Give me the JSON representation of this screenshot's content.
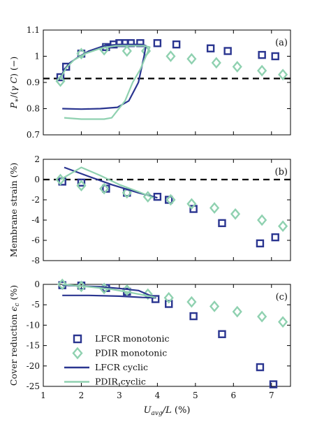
{
  "colors": {
    "lfcr": "#2a3590",
    "pdir": "#8fd1b0",
    "dashed": "#000000",
    "axis": "#000000"
  },
  "chart_data": [
    {
      "type": "scatter",
      "panel_label": "(a)",
      "ylabel": "P∗/(γ C) (−)",
      "xlim": [
        1,
        7.5
      ],
      "ylim": [
        0.7,
        1.1
      ],
      "yticks": [
        "0.7",
        "0.8",
        "0.9",
        "1",
        "1.1"
      ],
      "show_xticklabels": false,
      "reference_line": 0.915,
      "series": [
        {
          "name": "LFCR monotonic",
          "marker": "square",
          "color": "lfcr",
          "points": [
            [
              1.45,
              0.92
            ],
            [
              1.6,
              0.96
            ],
            [
              2.0,
              1.01
            ],
            [
              2.65,
              1.035
            ],
            [
              2.85,
              1.045
            ],
            [
              3.0,
              1.05
            ],
            [
              3.15,
              1.05
            ],
            [
              3.3,
              1.05
            ],
            [
              3.55,
              1.05
            ],
            [
              4.0,
              1.05
            ],
            [
              4.5,
              1.045
            ],
            [
              5.4,
              1.03
            ],
            [
              5.85,
              1.02
            ],
            [
              6.75,
              1.005
            ],
            [
              7.1,
              1.0
            ]
          ]
        },
        {
          "name": "PDIR monotonic",
          "marker": "diamond",
          "color": "pdir",
          "points": [
            [
              1.45,
              0.905
            ],
            [
              2.0,
              1.01
            ],
            [
              2.6,
              1.025
            ],
            [
              3.2,
              1.02
            ],
            [
              3.7,
              1.02
            ],
            [
              4.35,
              1.0
            ],
            [
              4.9,
              0.99
            ],
            [
              5.55,
              0.975
            ],
            [
              6.1,
              0.96
            ],
            [
              6.75,
              0.945
            ],
            [
              7.3,
              0.93
            ]
          ]
        },
        {
          "name": "LFCR cyclic",
          "line": true,
          "color": "lfcr",
          "points": [
            [
              1.45,
              0.915
            ],
            [
              1.55,
              0.95
            ],
            [
              1.7,
              0.975
            ],
            [
              1.9,
              0.995
            ],
            [
              2.2,
              1.02
            ],
            [
              2.6,
              1.04
            ],
            [
              3.0,
              1.045
            ],
            [
              3.3,
              1.045
            ],
            [
              3.6,
              1.045
            ],
            [
              3.7,
              1.04
            ],
            [
              3.65,
              1.0
            ],
            [
              3.5,
              0.9
            ],
            [
              3.25,
              0.83
            ],
            [
              2.95,
              0.805
            ],
            [
              2.5,
              0.8
            ],
            [
              2.0,
              0.798
            ],
            [
              1.5,
              0.8
            ]
          ]
        },
        {
          "name": "PDIR cyclic",
          "line": true,
          "color": "pdir",
          "points": [
            [
              1.45,
              0.915
            ],
            [
              1.6,
              0.955
            ],
            [
              1.8,
              0.985
            ],
            [
              2.1,
              1.01
            ],
            [
              2.5,
              1.03
            ],
            [
              2.9,
              1.04
            ],
            [
              3.3,
              1.04
            ],
            [
              3.65,
              1.04
            ],
            [
              3.8,
              1.035
            ],
            [
              3.55,
              0.95
            ],
            [
              3.35,
              0.9
            ],
            [
              3.15,
              0.83
            ],
            [
              2.8,
              0.765
            ],
            [
              2.6,
              0.76
            ],
            [
              2.0,
              0.76
            ],
            [
              1.55,
              0.765
            ]
          ]
        }
      ]
    },
    {
      "type": "scatter",
      "panel_label": "(b)",
      "ylabel": "Membrane strain (%)",
      "xlim": [
        1,
        7.5
      ],
      "ylim": [
        -8,
        2
      ],
      "yticks": [
        "-8",
        "-6",
        "-4",
        "-2",
        "0",
        "2"
      ],
      "show_xticklabels": false,
      "reference_line": 0,
      "series": [
        {
          "name": "LFCR monotonic",
          "marker": "square",
          "color": "lfcr",
          "points": [
            [
              1.5,
              -0.2
            ],
            [
              2.0,
              -0.3
            ],
            [
              2.65,
              -0.9
            ],
            [
              3.2,
              -1.3
            ],
            [
              4.0,
              -1.7
            ],
            [
              4.3,
              -2.0
            ],
            [
              4.95,
              -2.9
            ],
            [
              5.7,
              -4.3
            ],
            [
              6.7,
              -6.3
            ],
            [
              7.1,
              -5.7
            ]
          ]
        },
        {
          "name": "PDIR monotonic",
          "marker": "diamond",
          "color": "pdir",
          "points": [
            [
              1.45,
              0.0
            ],
            [
              2.0,
              -0.6
            ],
            [
              2.6,
              -0.9
            ],
            [
              3.2,
              -1.3
            ],
            [
              3.75,
              -1.7
            ],
            [
              4.35,
              -2.0
            ],
            [
              4.9,
              -2.4
            ],
            [
              5.5,
              -2.8
            ],
            [
              6.05,
              -3.4
            ],
            [
              6.75,
              -4.0
            ],
            [
              7.3,
              -4.6
            ]
          ]
        },
        {
          "name": "LFCR cyclic",
          "line": true,
          "color": "lfcr",
          "points": [
            [
              1.55,
              1.2
            ],
            [
              2.2,
              0.3
            ],
            [
              2.8,
              -0.5
            ],
            [
              3.5,
              -1.3
            ],
            [
              4.0,
              -1.8
            ]
          ]
        },
        {
          "name": "PDIR cyclic",
          "line": true,
          "color": "pdir",
          "points": [
            [
              1.45,
              0.0
            ],
            [
              2.0,
              1.2
            ],
            [
              2.5,
              0.4
            ],
            [
              3.0,
              -0.5
            ],
            [
              3.5,
              -1.2
            ],
            [
              3.9,
              -1.8
            ]
          ]
        }
      ]
    },
    {
      "type": "scatter",
      "panel_label": "(c)",
      "ylabel": "Cover reduction ϵc (%)",
      "xlabel": "Uavg/L (%)",
      "xlim": [
        1,
        7.5
      ],
      "ylim": [
        -25,
        0
      ],
      "xticks": [
        "1",
        "2",
        "3",
        "4",
        "5",
        "6",
        "7"
      ],
      "yticks": [
        "-25",
        "-20",
        "-15",
        "-10",
        "-5",
        "0"
      ],
      "show_xticklabels": true,
      "legend_position": "lower-left",
      "series": [
        {
          "name": "LFCR monotonic",
          "marker": "square",
          "color": "lfcr",
          "points": [
            [
              1.5,
              -0.2
            ],
            [
              2.0,
              -0.3
            ],
            [
              2.65,
              -0.9
            ],
            [
              3.2,
              -1.8
            ],
            [
              3.95,
              -3.6
            ],
            [
              4.3,
              -4.8
            ],
            [
              4.95,
              -7.8
            ],
            [
              5.7,
              -12.2
            ],
            [
              6.7,
              -20.3
            ],
            [
              7.05,
              -24.5
            ]
          ]
        },
        {
          "name": "PDIR monotonic",
          "marker": "diamond",
          "color": "pdir",
          "points": [
            [
              1.5,
              0.0
            ],
            [
              2.0,
              -0.5
            ],
            [
              2.6,
              -1.0
            ],
            [
              3.2,
              -1.4
            ],
            [
              3.75,
              -2.4
            ],
            [
              4.3,
              -3.3
            ],
            [
              4.9,
              -4.3
            ],
            [
              5.5,
              -5.4
            ],
            [
              6.1,
              -6.7
            ],
            [
              6.75,
              -7.9
            ],
            [
              7.3,
              -9.2
            ]
          ]
        },
        {
          "name": "LFCR cyclic",
          "line": true,
          "color": "lfcr",
          "points": [
            [
              1.5,
              -2.7
            ],
            [
              2.2,
              -2.7
            ],
            [
              3.0,
              -2.9
            ],
            [
              3.6,
              -3.2
            ],
            [
              3.95,
              -3.3
            ],
            [
              3.5,
              -1.5
            ],
            [
              3.0,
              -1.0
            ],
            [
              2.5,
              -0.6
            ],
            [
              1.5,
              -0.2
            ]
          ]
        },
        {
          "name": "PDIR cyclic",
          "line": true,
          "color": "pdir",
          "points": [
            [
              1.5,
              0.0
            ],
            [
              2.2,
              -0.6
            ],
            [
              2.8,
              -1.2
            ],
            [
              3.4,
              -2.2
            ],
            [
              3.95,
              -3.2
            ]
          ]
        }
      ],
      "legend": [
        {
          "label": "LFCR monotonic",
          "kind": "square",
          "color": "lfcr"
        },
        {
          "label": "PDIR monotonic",
          "kind": "diamond",
          "color": "pdir"
        },
        {
          "label": "LFCR cyclic",
          "kind": "line",
          "color": "lfcr"
        },
        {
          "label": "PDIR cyclic",
          "kind": "line",
          "color": "pdir"
        }
      ]
    }
  ]
}
